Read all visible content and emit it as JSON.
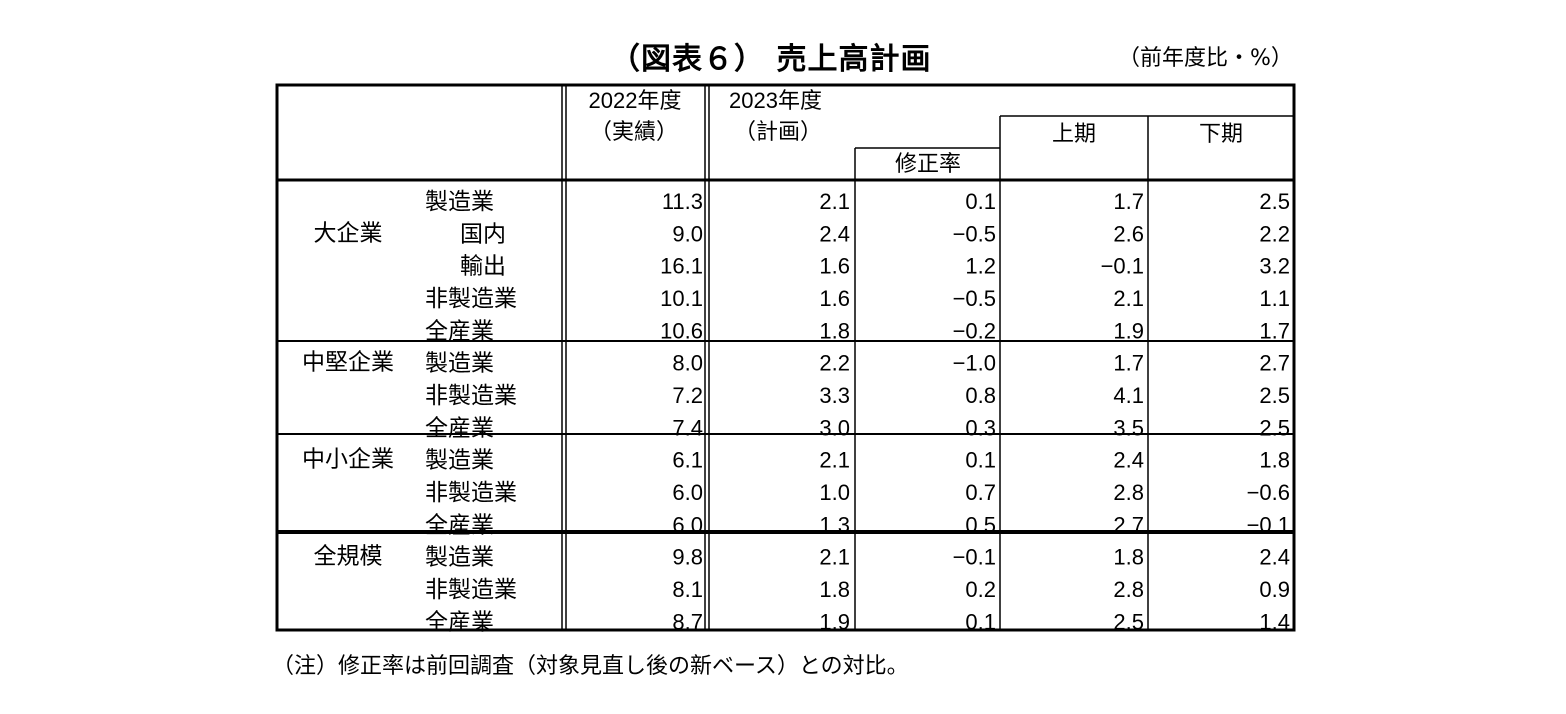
{
  "title": "（図表６） 売上高計画",
  "unit": "（前年度比・%）",
  "headers": {
    "fy2022_year": "2022年度",
    "fy2022_sub": "（実績）",
    "fy2023_year": "2023年度",
    "fy2023_sub": "（計画）",
    "revision": "修正率",
    "first_half": "上期",
    "second_half": "下期"
  },
  "groups": [
    {
      "name": "大企業",
      "rows": [
        {
          "label": "製造業",
          "indent": false,
          "values": [
            "11.3",
            "2.1",
            "0.1",
            "1.7",
            "2.5"
          ]
        },
        {
          "label": "国内",
          "indent": true,
          "values": [
            "9.0",
            "2.4",
            "−0.5",
            "2.6",
            "2.2"
          ]
        },
        {
          "label": "輸出",
          "indent": true,
          "values": [
            "16.1",
            "1.6",
            "1.2",
            "−0.1",
            "3.2"
          ]
        },
        {
          "label": "非製造業",
          "indent": false,
          "values": [
            "10.1",
            "1.6",
            "−0.5",
            "2.1",
            "1.1"
          ]
        },
        {
          "label": "全産業",
          "indent": false,
          "values": [
            "10.6",
            "1.8",
            "−0.2",
            "1.9",
            "1.7"
          ]
        }
      ]
    },
    {
      "name": "中堅企業",
      "rows": [
        {
          "label": "製造業",
          "indent": false,
          "values": [
            "8.0",
            "2.2",
            "−1.0",
            "1.7",
            "2.7"
          ]
        },
        {
          "label": "非製造業",
          "indent": false,
          "values": [
            "7.2",
            "3.3",
            "0.8",
            "4.1",
            "2.5"
          ]
        },
        {
          "label": "全産業",
          "indent": false,
          "values": [
            "7.4",
            "3.0",
            "0.3",
            "3.5",
            "2.5"
          ]
        }
      ]
    },
    {
      "name": "中小企業",
      "rows": [
        {
          "label": "製造業",
          "indent": false,
          "values": [
            "6.1",
            "2.1",
            "0.1",
            "2.4",
            "1.8"
          ]
        },
        {
          "label": "非製造業",
          "indent": false,
          "values": [
            "6.0",
            "1.0",
            "0.7",
            "2.8",
            "−0.6"
          ]
        },
        {
          "label": "全産業",
          "indent": false,
          "values": [
            "6.0",
            "1.3",
            "0.5",
            "2.7",
            "−0.1"
          ]
        }
      ]
    },
    {
      "name": "全規模",
      "rows": [
        {
          "label": "製造業",
          "indent": false,
          "values": [
            "9.8",
            "2.1",
            "−0.1",
            "1.8",
            "2.4"
          ]
        },
        {
          "label": "非製造業",
          "indent": false,
          "values": [
            "8.1",
            "1.8",
            "0.2",
            "2.8",
            "0.9"
          ]
        },
        {
          "label": "全産業",
          "indent": false,
          "values": [
            "8.7",
            "1.9",
            "0.1",
            "2.5",
            "1.4"
          ]
        }
      ]
    }
  ],
  "note": "（注）修正率は前回調査（対象見直し後の新ベース）との対比。"
}
